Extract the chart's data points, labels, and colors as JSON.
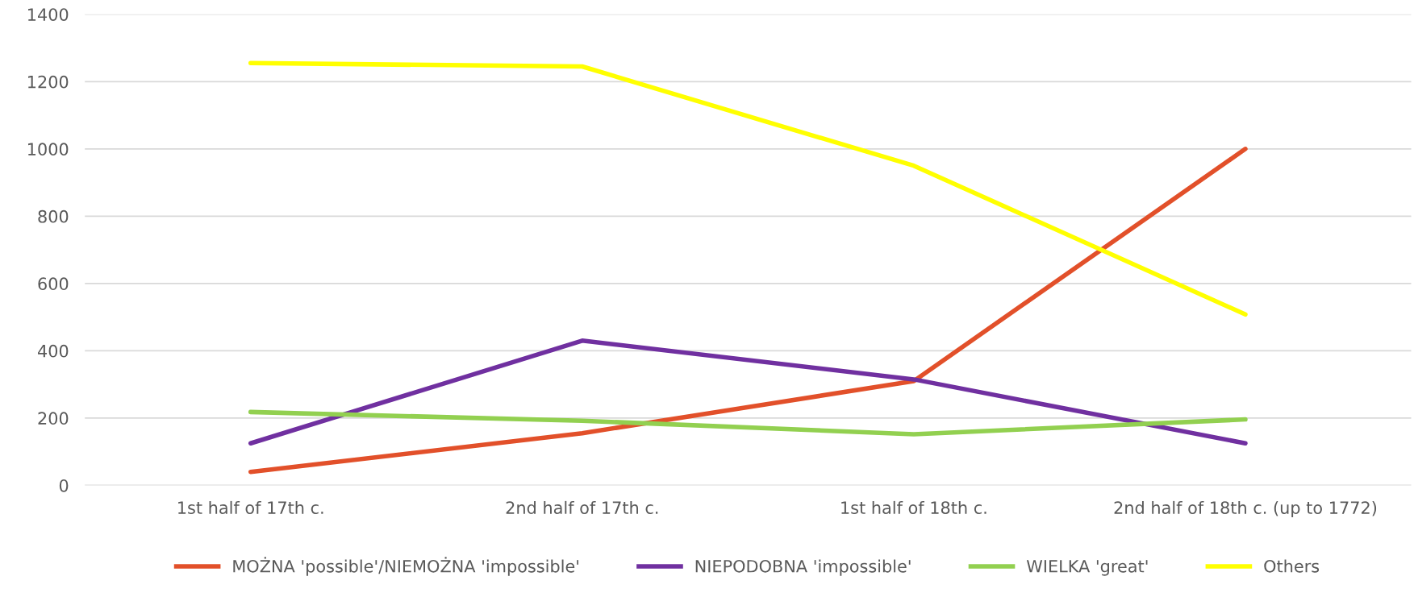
{
  "chart_data": {
    "type": "line",
    "categories": [
      "1st half of 17th c.",
      "2nd half of 17th c.",
      "1st half of 18th c.",
      "2nd half of 18th c. (up to 1772)"
    ],
    "series": [
      {
        "name": "MOŻNA 'possible'/NIEMOŻNA 'impossible'",
        "color": "#e2502a",
        "values": [
          40,
          155,
          310,
          1000
        ]
      },
      {
        "name": "NIEPODOBNA 'impossible'",
        "color": "#7030a0",
        "values": [
          125,
          430,
          315,
          125
        ]
      },
      {
        "name": "WIELKA 'great'",
        "color": "#92d050",
        "values": [
          218,
          192,
          152,
          196
        ]
      },
      {
        "name": "Others",
        "color": "#ffff00",
        "values": [
          1255,
          1245,
          950,
          508
        ]
      }
    ],
    "ylim": [
      0,
      1400
    ],
    "yticks": [
      0,
      200,
      400,
      600,
      800,
      1000,
      1200,
      1400
    ],
    "grid": "y",
    "legend": "bottom",
    "marker": "none",
    "line_style": "solid"
  }
}
